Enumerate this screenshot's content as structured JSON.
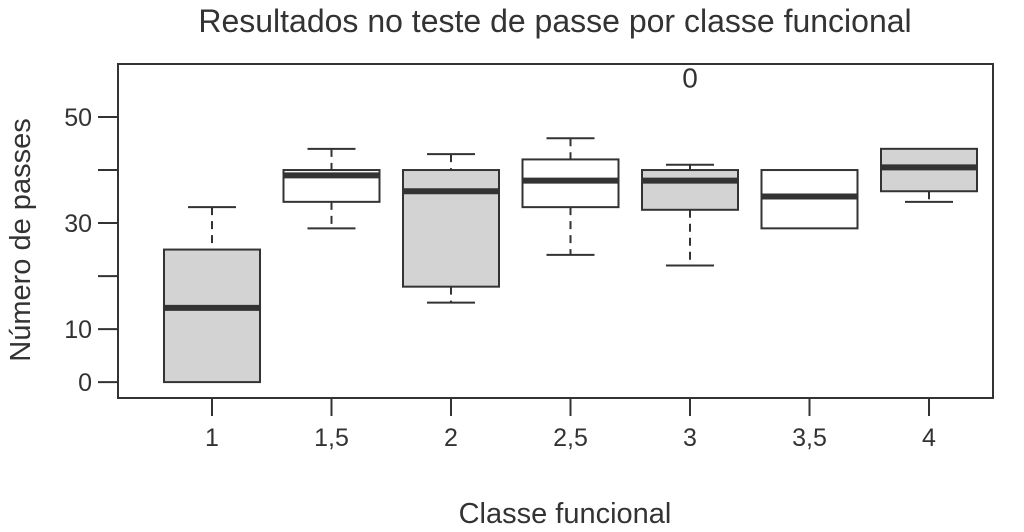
{
  "chart_data": {
    "type": "box",
    "title": "Resultados no teste de passe por classe funcional",
    "xlabel": "Classe funcional",
    "ylabel": "Número de passes",
    "ylim": [
      -3,
      60
    ],
    "yticks": [
      0,
      10,
      20,
      30,
      40,
      50
    ],
    "ytick_labels": [
      "0",
      "10",
      "",
      "30",
      "",
      "50"
    ],
    "categories": [
      "1",
      "1,5",
      "2",
      "2,5",
      "3",
      "3,5",
      "4"
    ],
    "boxes": [
      {
        "category": "1",
        "whisker_low": 0,
        "q1": 0,
        "median": 14,
        "q3": 25,
        "whisker_high": 33,
        "fill": "#d3d3d3"
      },
      {
        "category": "1,5",
        "whisker_low": 29,
        "q1": 34,
        "median": 39,
        "q3": 40,
        "whisker_high": 44,
        "fill": "#ffffff"
      },
      {
        "category": "2",
        "whisker_low": 15,
        "q1": 18,
        "median": 36,
        "q3": 40,
        "whisker_high": 43,
        "fill": "#d3d3d3"
      },
      {
        "category": "2,5",
        "whisker_low": 24,
        "q1": 33,
        "median": 38,
        "q3": 42,
        "whisker_high": 46,
        "fill": "#ffffff"
      },
      {
        "category": "3",
        "whisker_low": 22,
        "q1": 32.5,
        "median": 38,
        "q3": 40,
        "whisker_high": 41,
        "fill": "#d3d3d3"
      },
      {
        "category": "3,5",
        "whisker_low": 29,
        "q1": 29,
        "median": 35,
        "q3": 40,
        "whisker_high": 40,
        "fill": "#ffffff"
      },
      {
        "category": "4",
        "whisker_low": 34,
        "q1": 36,
        "median": 40.5,
        "q3": 44,
        "whisker_high": 44,
        "fill": "#d3d3d3"
      }
    ],
    "outliers": [
      {
        "category": "3",
        "y": 57.5,
        "label": "0"
      }
    ],
    "grid": false
  }
}
